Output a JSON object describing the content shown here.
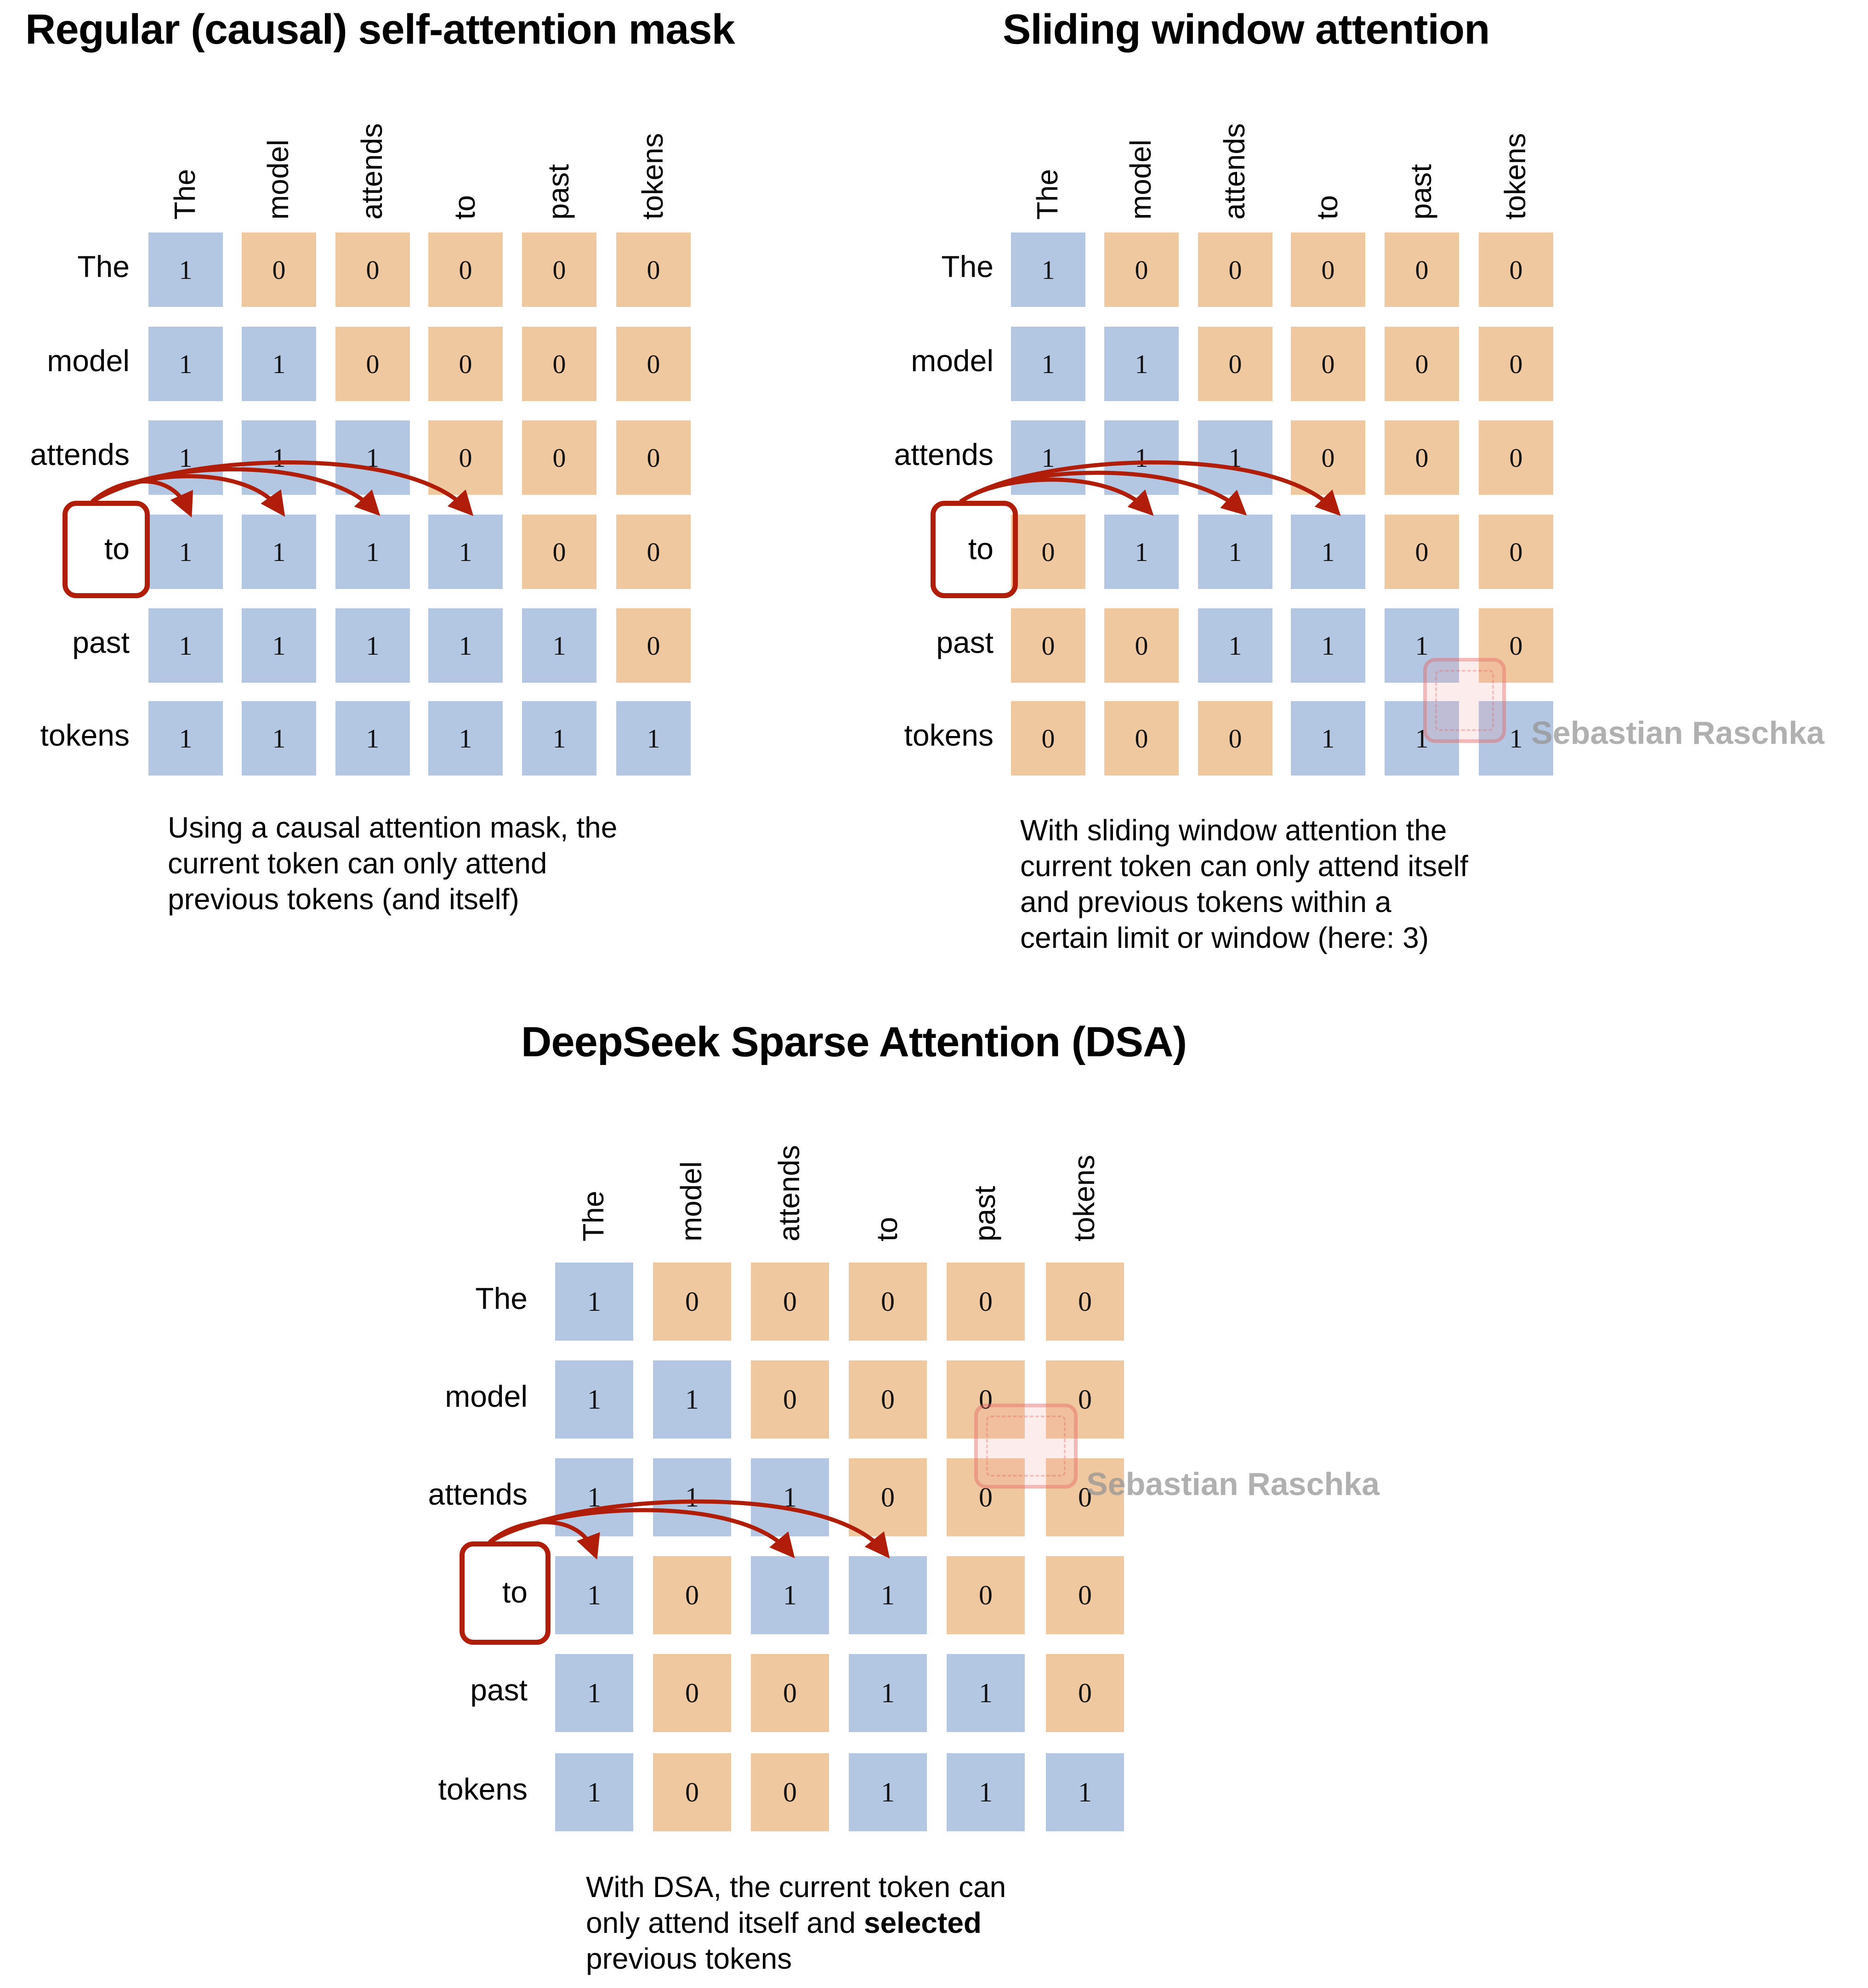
{
  "colors": {
    "attend_cell": "#B3C7E3",
    "masked_cell": "#F0C8A0",
    "highlight": "#B01E0A",
    "watermark_text": "#969696"
  },
  "tokens": [
    "The",
    "model",
    "attends",
    "to",
    "past",
    "tokens"
  ],
  "panels": {
    "causal": {
      "title": "Regular (causal) self-attention mask",
      "focus_token": "to",
      "matrix": [
        [
          1,
          0,
          0,
          0,
          0,
          0
        ],
        [
          1,
          1,
          0,
          0,
          0,
          0
        ],
        [
          1,
          1,
          1,
          0,
          0,
          0
        ],
        [
          1,
          1,
          1,
          1,
          0,
          0
        ],
        [
          1,
          1,
          1,
          1,
          1,
          0
        ],
        [
          1,
          1,
          1,
          1,
          1,
          1
        ]
      ],
      "caption": [
        "Using a causal attention mask, the",
        "current token can only attend",
        "previous tokens (and itself)"
      ]
    },
    "sliding": {
      "title": "Sliding window attention",
      "focus_token": "to",
      "matrix": [
        [
          1,
          0,
          0,
          0,
          0,
          0
        ],
        [
          1,
          1,
          0,
          0,
          0,
          0
        ],
        [
          1,
          1,
          1,
          0,
          0,
          0
        ],
        [
          0,
          1,
          1,
          1,
          0,
          0
        ],
        [
          0,
          0,
          1,
          1,
          1,
          0
        ],
        [
          0,
          0,
          0,
          1,
          1,
          1
        ]
      ],
      "caption": [
        "With sliding window attention the",
        "current token can only attend itself",
        "and previous tokens within a",
        "certain limit or window (here: 3)"
      ],
      "watermark": "Sebastian Raschka"
    },
    "dsa": {
      "title": "DeepSeek Sparse Attention (DSA)",
      "focus_token": "to",
      "matrix": [
        [
          1,
          0,
          0,
          0,
          0,
          0
        ],
        [
          1,
          1,
          0,
          0,
          0,
          0
        ],
        [
          1,
          1,
          1,
          0,
          0,
          0
        ],
        [
          1,
          0,
          1,
          1,
          0,
          0
        ],
        [
          1,
          0,
          0,
          1,
          1,
          0
        ],
        [
          1,
          0,
          0,
          1,
          1,
          1
        ]
      ],
      "caption": {
        "line1": "With DSA, the current token can",
        "line2_pre": "only attend itself and ",
        "line2_bold": "selected",
        "line3": "previous tokens"
      },
      "watermark": "Sebastian Raschka"
    }
  }
}
